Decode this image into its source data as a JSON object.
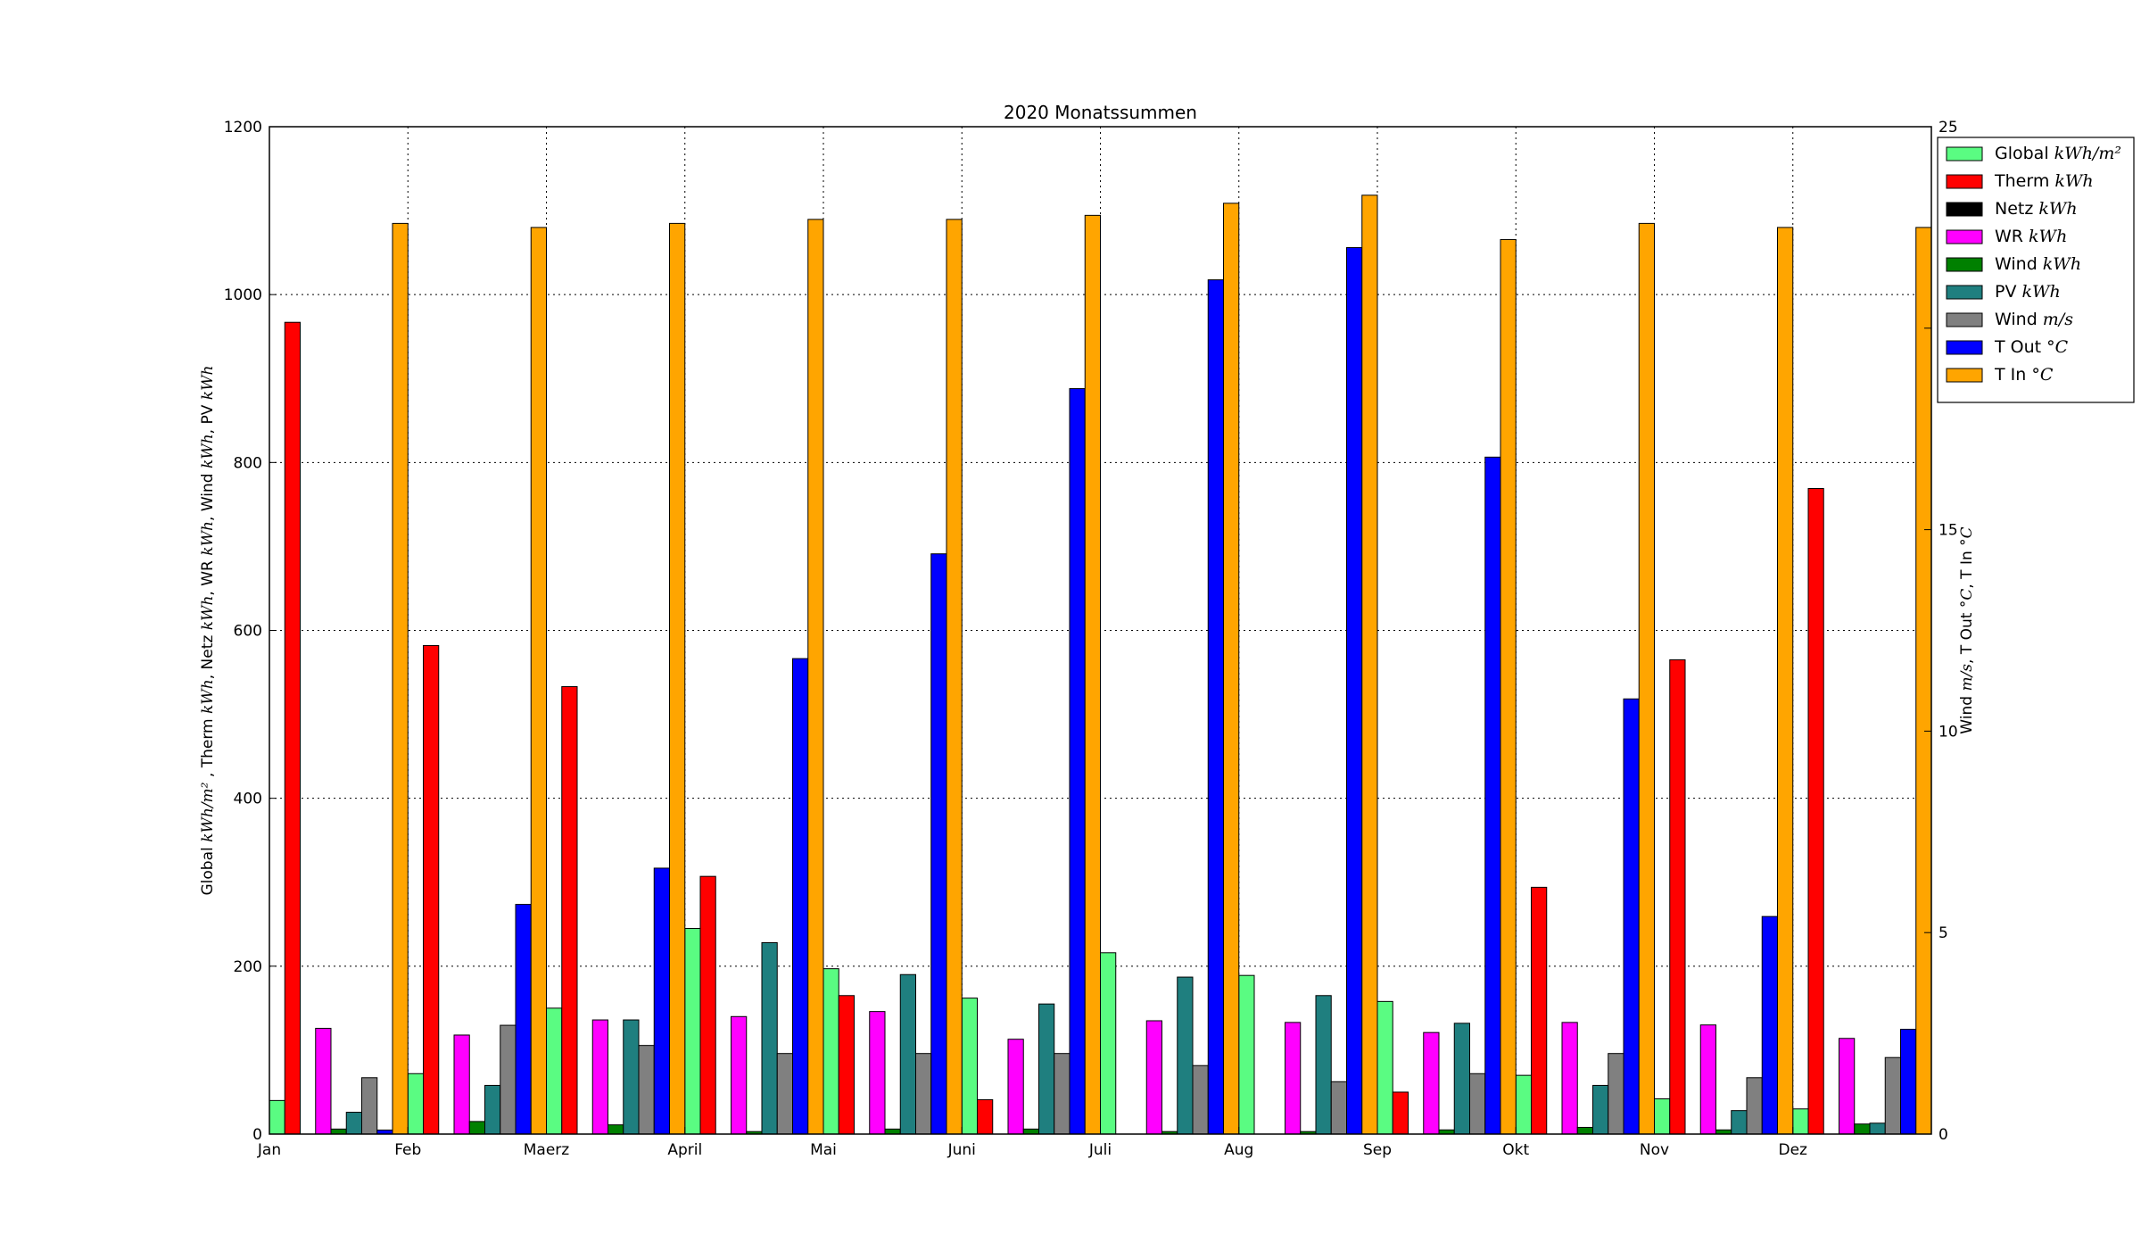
{
  "chart_data": {
    "type": "bar",
    "title": "2020 Monatssummen",
    "ylabel_left": {
      "parts": [
        {
          "t": "Global "
        },
        {
          "t": "kWh/m²",
          "unit": true
        },
        {
          "t": " , Therm "
        },
        {
          "t": "kWh",
          "unit": true
        },
        {
          "t": ", Netz "
        },
        {
          "t": "kWh",
          "unit": true
        },
        {
          "t": ", WR "
        },
        {
          "t": "kWh",
          "unit": true
        },
        {
          "t": ", Wind "
        },
        {
          "t": "kWh",
          "unit": true
        },
        {
          "t": ", PV "
        },
        {
          "t": "kWh",
          "unit": true
        }
      ]
    },
    "ylabel_right": {
      "parts": [
        {
          "t": "Wind "
        },
        {
          "t": "m/s",
          "unit": true
        },
        {
          "t": ", T Out "
        },
        {
          "t": "°C",
          "unit": true
        },
        {
          "t": ", T In "
        },
        {
          "t": "°C",
          "unit": true
        }
      ]
    },
    "categories": [
      "Jan",
      "Feb",
      "Maerz",
      "April",
      "Mai",
      "Juni",
      "Juli",
      "Aug",
      "Sep",
      "Okt",
      "Nov",
      "Dez"
    ],
    "ylim_left": [
      0,
      1200
    ],
    "yticks_left": [
      0,
      200,
      400,
      600,
      800,
      1000,
      1200
    ],
    "ylim_right": [
      0,
      25
    ],
    "yticks_right": [
      0,
      5,
      10,
      15,
      20,
      25
    ],
    "grid": true,
    "legend_position": "outside-right-top",
    "series": [
      {
        "name": "Global",
        "unit": "kWh/m²",
        "axis": "left",
        "color": "#5afc82",
        "values": [
          40,
          72,
          150,
          245,
          197,
          162,
          216,
          189,
          158,
          70,
          42,
          30
        ]
      },
      {
        "name": "Therm",
        "unit": "kWh",
        "axis": "left",
        "color": "#ff0000",
        "values": [
          967,
          582,
          533,
          307,
          165,
          41,
          0,
          0,
          50,
          294,
          565,
          769
        ]
      },
      {
        "name": "Netz",
        "unit": "kWh",
        "axis": "left",
        "color": "#000000",
        "values": [
          0,
          0,
          0,
          0,
          0,
          0,
          0,
          0,
          0,
          0,
          0,
          0
        ]
      },
      {
        "name": "WR",
        "unit": "kWh",
        "axis": "left",
        "color": "#ff00ff",
        "values": [
          126,
          118,
          136,
          140,
          146,
          113,
          135,
          133,
          121,
          133,
          130,
          114
        ]
      },
      {
        "name": "Wind",
        "unit": "kWh",
        "axis": "left",
        "color": "#008000",
        "values": [
          6,
          15,
          11,
          3,
          6,
          6,
          3,
          3,
          5,
          8,
          5,
          12
        ]
      },
      {
        "name": "PV",
        "unit": "kWh",
        "axis": "left",
        "color": "#1f7f7f",
        "values": [
          26,
          58,
          136,
          228,
          190,
          155,
          187,
          165,
          132,
          58,
          28,
          13
        ]
      },
      {
        "name": "Wind",
        "unit": "m/s",
        "axis": "right",
        "color": "#808080",
        "values": [
          1.4,
          2.7,
          2.2,
          2.0,
          2.0,
          2.0,
          1.7,
          1.3,
          1.5,
          2.0,
          1.4,
          1.9
        ]
      },
      {
        "name": "T Out",
        "unit": "°C",
        "axis": "right",
        "color": "#0000ff",
        "values": [
          0.1,
          5.7,
          6.6,
          11.8,
          14.4,
          18.5,
          21.2,
          22.0,
          16.8,
          10.8,
          5.4,
          2.6
        ]
      },
      {
        "name": "T In",
        "unit": "°C",
        "axis": "right",
        "color": "#ffa500",
        "values": [
          22.6,
          22.5,
          22.6,
          22.7,
          22.7,
          22.8,
          23.1,
          23.3,
          22.2,
          22.6,
          22.5,
          22.5
        ]
      }
    ]
  }
}
